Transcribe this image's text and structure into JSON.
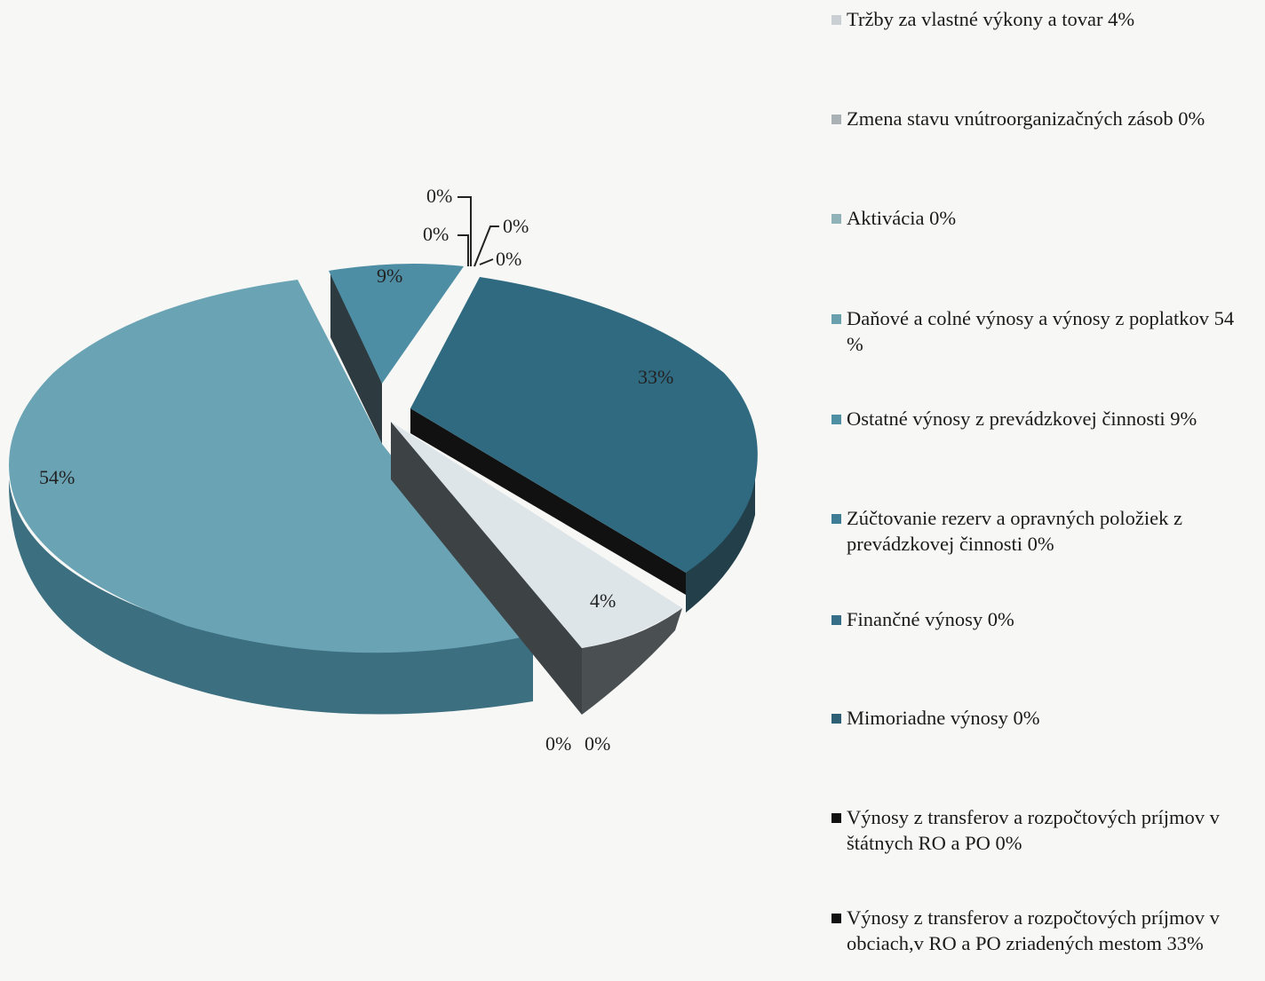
{
  "chart_data": {
    "type": "pie",
    "title": "",
    "slices": [
      {
        "label": "Tržby za vlastné výkony a tovar 4%",
        "value": 4,
        "pct_label": "4%",
        "color": "#d8e0e4"
      },
      {
        "label": "Zmena stavu vnútroorganizačných zásob 0%",
        "value": 0,
        "pct_label": "0%",
        "color": "#b7bfc4"
      },
      {
        "label": "Aktivácia 0%",
        "value": 0,
        "pct_label": "0%",
        "color": "#8fb3b8"
      },
      {
        "label": "Daňové a colné výnosy a výnosy z poplatkov  54 %",
        "value": 54,
        "pct_label": "54%",
        "color": "#5c96a8"
      },
      {
        "label": "Ostatné výnosy z prevádzkovej činnosti 9%",
        "value": 9,
        "pct_label": "9%",
        "color": "#4a8aa0"
      },
      {
        "label": "Zúčtovanie rezerv a opravných položiek z prevádzkovej činnosti 0%",
        "value": 0,
        "pct_label": "0%",
        "color": "#3f7d96"
      },
      {
        "label": "Finančné výnosy 0%",
        "value": 0,
        "pct_label": "0%",
        "color": "#356e86"
      },
      {
        "label": "Mimoriadne výnosy 0%",
        "value": 0,
        "pct_label": "0%",
        "color": "#2d6075"
      },
      {
        "label": "Výnosy z transferov a rozpočtových príjmov v štátnych RO a PO 0%",
        "value": 0,
        "pct_label": "0%",
        "color": "#1a1a1a"
      },
      {
        "label": "Výnosy z transferov a rozpočtových príjmov v obciach,v RO a PO zriadených mestom 33%",
        "value": 33,
        "pct_label": "33%",
        "color": "#2b5e72"
      }
    ],
    "legend_position": "right"
  },
  "legend": {
    "items": [
      {
        "text": "Tržby za vlastné výkony a tovar 4%",
        "color": "#c9cfd2"
      },
      {
        "text": "Zmena stavu vnútroorganizačných zásob 0%",
        "color": "#a9b1b5"
      },
      {
        "text": "Aktivácia 0%",
        "color": "#8fb3b8"
      },
      {
        "text": "Daňové a colné výnosy a výnosy z poplatkov  54 %",
        "color": "#6aa0ae"
      },
      {
        "text": "Ostatné výnosy z prevádzkovej činnosti 9%",
        "color": "#4f8fa3"
      },
      {
        "text": "Zúčtovanie rezerv a opravných položiek z prevádzkovej činnosti 0%",
        "color": "#3f7d96"
      },
      {
        "text": "Finančné výnosy 0%",
        "color": "#356e86"
      },
      {
        "text": "Mimoriadne výnosy 0%",
        "color": "#2d6075"
      },
      {
        "text": "Výnosy z transferov a rozpočtových príjmov v štátnych RO a PO 0%",
        "color": "#111111"
      },
      {
        "text": "Výnosy z transferov a rozpočtových príjmov v obciach,v RO a PO zriadených mestom 33%",
        "color": "#111111"
      }
    ]
  },
  "labels": {
    "slice_54": "54%",
    "slice_9": "9%",
    "slice_33": "33%",
    "slice_4": "4%",
    "zero_top_1": "0%",
    "zero_top_2": "0%",
    "zero_top_3": "0%",
    "zero_top_4": "0%",
    "zero_bottom_1": "0%",
    "zero_bottom_2": "0%"
  }
}
